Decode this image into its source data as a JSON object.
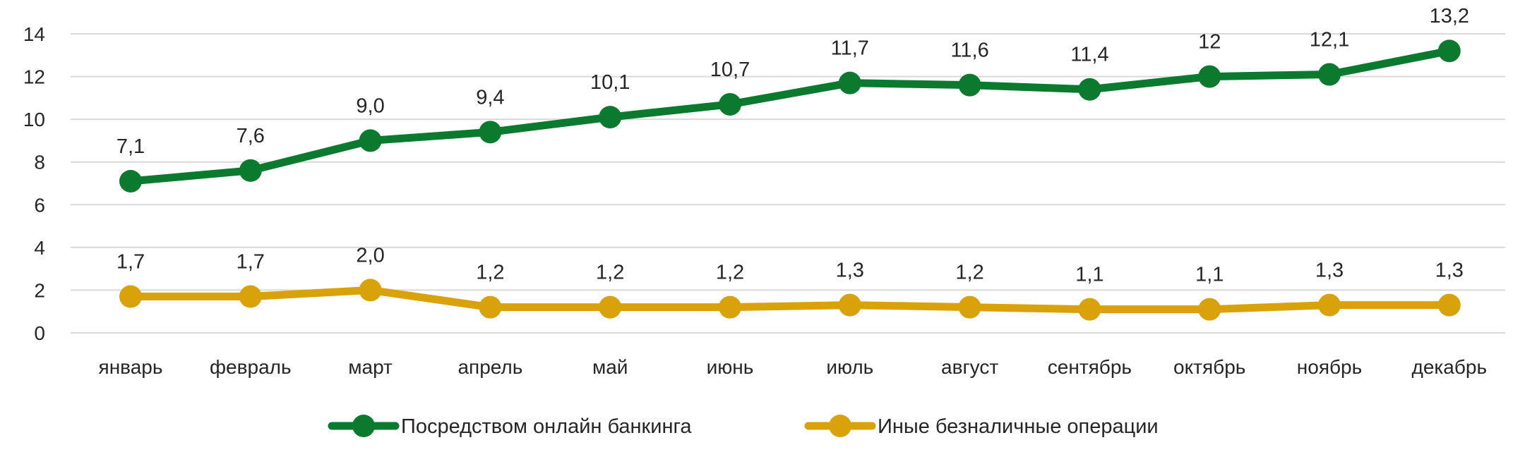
{
  "chart_data": {
    "type": "line",
    "categories": [
      "январь",
      "февраль",
      "март",
      "апрель",
      "май",
      "июнь",
      "июль",
      "август",
      "сентябрь",
      "октябрь",
      "ноябрь",
      "декабрь"
    ],
    "series": [
      {
        "name": "Посредством онлайн банкинга",
        "color": "#0b7a2e",
        "values": [
          7.1,
          7.6,
          9.0,
          9.4,
          10.1,
          10.7,
          11.7,
          11.6,
          11.4,
          12,
          12.1,
          13.2
        ],
        "labels": [
          "7,1",
          "7,6",
          "9,0",
          "9,4",
          "10,1",
          "10,7",
          "11,7",
          "11,6",
          "11,4",
          "12",
          "12,1",
          "13,2"
        ]
      },
      {
        "name": "Иные безналичные операции",
        "color": "#d9a10a",
        "values": [
          1.7,
          1.7,
          2.0,
          1.2,
          1.2,
          1.2,
          1.3,
          1.2,
          1.1,
          1.1,
          1.3,
          1.3
        ],
        "labels": [
          "1,7",
          "1,7",
          "2,0",
          "1,2",
          "1,2",
          "1,2",
          "1,3",
          "1,2",
          "1,1",
          "1,1",
          "1,3",
          "1,3"
        ]
      }
    ],
    "yticks": [
      "0",
      "2",
      "4",
      "6",
      "8",
      "10",
      "12",
      "14"
    ],
    "ylim": [
      0,
      14
    ],
    "grid": true,
    "legend": "bottom"
  }
}
